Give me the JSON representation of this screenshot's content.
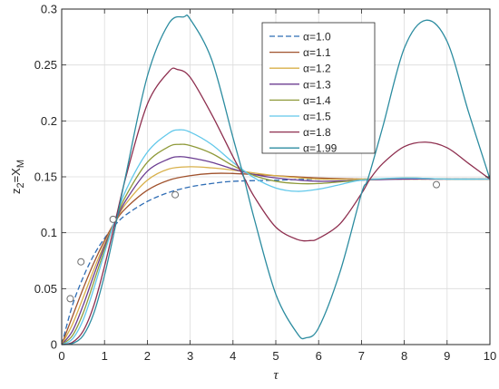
{
  "chart_data": {
    "type": "line",
    "xlabel": "τ",
    "ylabel": {
      "base": "z",
      "sub1": "2",
      "mid": "=X",
      "sub2": "M"
    },
    "xlim": [
      0,
      10
    ],
    "ylim": [
      0,
      0.3
    ],
    "xticks": [
      "0",
      "1",
      "2",
      "3",
      "4",
      "5",
      "6",
      "7",
      "8",
      "9",
      "10"
    ],
    "yticks": [
      "0",
      "0.05",
      "0.1",
      "0.15",
      "0.2",
      "0.25",
      "0.3"
    ],
    "grid": true,
    "legend_position": "top-right",
    "series": [
      {
        "name": "α=1.0",
        "color": "#2f6db5",
        "dashed": true,
        "x": [
          0,
          0.25,
          0.5,
          0.75,
          1,
          1.25,
          1.5,
          2,
          2.5,
          3,
          3.5,
          4,
          5,
          6,
          7,
          8,
          9,
          10
        ],
        "y": [
          0,
          0.035,
          0.06,
          0.08,
          0.095,
          0.107,
          0.116,
          0.128,
          0.136,
          0.141,
          0.144,
          0.146,
          0.147,
          0.148,
          0.148,
          0.148,
          0.148,
          0.148
        ]
      },
      {
        "name": "α=1.1",
        "color": "#a0522d",
        "dashed": false,
        "x": [
          0,
          0.25,
          0.5,
          0.75,
          1,
          1.25,
          1.5,
          2,
          2.5,
          3,
          3.5,
          4,
          5,
          6,
          7,
          8,
          9,
          10
        ],
        "y": [
          0,
          0.025,
          0.05,
          0.073,
          0.093,
          0.11,
          0.122,
          0.138,
          0.147,
          0.151,
          0.153,
          0.153,
          0.151,
          0.149,
          0.148,
          0.148,
          0.148,
          0.148
        ]
      },
      {
        "name": "α=1.2",
        "color": "#d8b04a",
        "dashed": false,
        "x": [
          0,
          0.25,
          0.5,
          0.75,
          1,
          1.25,
          1.5,
          2,
          2.5,
          3,
          3.5,
          4,
          5,
          6,
          7,
          8,
          9,
          10
        ],
        "y": [
          0,
          0.018,
          0.042,
          0.067,
          0.09,
          0.11,
          0.126,
          0.147,
          0.157,
          0.159,
          0.158,
          0.156,
          0.151,
          0.148,
          0.148,
          0.148,
          0.148,
          0.148
        ]
      },
      {
        "name": "α=1.3",
        "color": "#6b3d91",
        "dashed": false,
        "x": [
          0,
          0.25,
          0.5,
          0.75,
          1,
          1.25,
          1.5,
          2,
          2.5,
          2.75,
          3,
          3.5,
          4,
          4.5,
          5,
          6,
          7,
          8,
          9,
          10
        ],
        "y": [
          0,
          0.012,
          0.035,
          0.062,
          0.088,
          0.11,
          0.129,
          0.155,
          0.166,
          0.168,
          0.167,
          0.163,
          0.157,
          0.152,
          0.149,
          0.146,
          0.147,
          0.148,
          0.148,
          0.148
        ]
      },
      {
        "name": "α=1.4",
        "color": "#8f9a3a",
        "dashed": false,
        "x": [
          0,
          0.25,
          0.5,
          0.75,
          1,
          1.25,
          1.5,
          2,
          2.5,
          2.75,
          3,
          3.5,
          4,
          4.5,
          5,
          5.5,
          6,
          7,
          8,
          9,
          10
        ],
        "y": [
          0,
          0.008,
          0.028,
          0.056,
          0.085,
          0.111,
          0.133,
          0.163,
          0.177,
          0.179,
          0.178,
          0.171,
          0.16,
          0.151,
          0.146,
          0.144,
          0.144,
          0.147,
          0.149,
          0.148,
          0.148
        ]
      },
      {
        "name": "α=1.5",
        "color": "#62c8ea",
        "dashed": false,
        "x": [
          0,
          0.25,
          0.5,
          0.75,
          1,
          1.25,
          1.5,
          2,
          2.5,
          2.75,
          3,
          3.5,
          4,
          4.5,
          5,
          5.5,
          6,
          6.5,
          7,
          8,
          9,
          10
        ],
        "y": [
          0,
          0.005,
          0.022,
          0.05,
          0.082,
          0.112,
          0.138,
          0.172,
          0.189,
          0.192,
          0.19,
          0.179,
          0.163,
          0.149,
          0.14,
          0.137,
          0.139,
          0.143,
          0.147,
          0.149,
          0.148,
          0.148
        ]
      },
      {
        "name": "α=1.8",
        "color": "#8e2f4f",
        "dashed": false,
        "x": [
          0,
          0.25,
          0.5,
          0.75,
          1,
          1.25,
          1.5,
          2,
          2.5,
          2.7,
          3,
          3.5,
          4,
          4.25,
          4.5,
          5,
          5.5,
          5.8,
          6,
          6.5,
          7,
          7.2,
          7.5,
          8,
          8.5,
          9,
          9.5,
          10
        ],
        "y": [
          0,
          0.002,
          0.012,
          0.035,
          0.07,
          0.11,
          0.15,
          0.215,
          0.244,
          0.246,
          0.239,
          0.206,
          0.168,
          0.15,
          0.132,
          0.105,
          0.094,
          0.093,
          0.095,
          0.108,
          0.135,
          0.148,
          0.162,
          0.177,
          0.181,
          0.176,
          0.162,
          0.148
        ]
      },
      {
        "name": "α=1.99",
        "color": "#2c8ca0",
        "dashed": false,
        "x": [
          0,
          0.25,
          0.5,
          0.75,
          1,
          1.25,
          1.5,
          2,
          2.5,
          2.85,
          3,
          3.5,
          4,
          4.25,
          4.5,
          5,
          5.5,
          5.7,
          6,
          6.5,
          7,
          7.15,
          7.5,
          8,
          8.5,
          9,
          9.5,
          10
        ],
        "y": [
          0,
          0.001,
          0.008,
          0.028,
          0.062,
          0.105,
          0.152,
          0.24,
          0.287,
          0.293,
          0.291,
          0.255,
          0.185,
          0.15,
          0.112,
          0.045,
          0.01,
          0.006,
          0.015,
          0.065,
          0.135,
          0.148,
          0.195,
          0.265,
          0.29,
          0.271,
          0.208,
          0.148
        ]
      }
    ],
    "markers": {
      "style": "open-circle",
      "points": [
        {
          "x": 0.2,
          "y": 0.041
        },
        {
          "x": 0.45,
          "y": 0.074
        },
        {
          "x": 1.2,
          "y": 0.112
        },
        {
          "x": 2.65,
          "y": 0.134
        },
        {
          "x": 8.75,
          "y": 0.143
        }
      ]
    }
  }
}
